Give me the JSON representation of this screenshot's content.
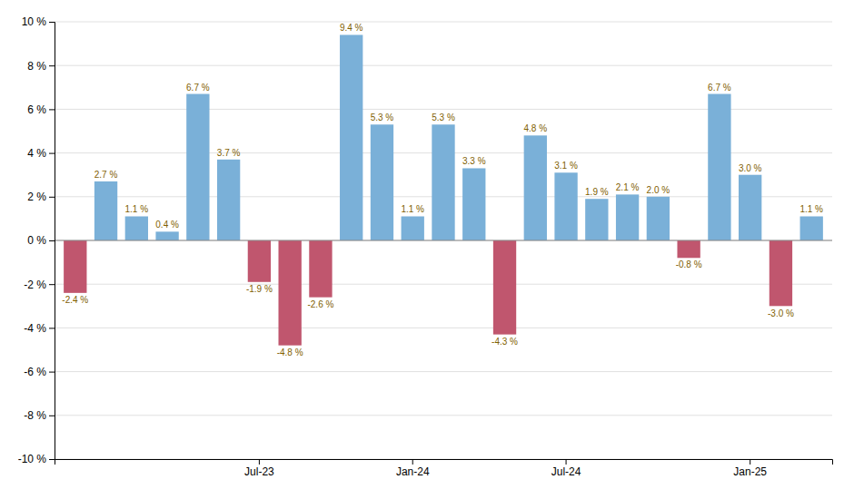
{
  "chart_data": {
    "type": "bar",
    "categories": [
      null,
      null,
      null,
      null,
      null,
      null,
      "Jul-23",
      null,
      null,
      null,
      null,
      "Jan-24",
      null,
      null,
      null,
      null,
      "Jul-24",
      null,
      null,
      null,
      null,
      null,
      "Jan-25",
      null,
      null
    ],
    "values": [
      -2.4,
      2.7,
      1.1,
      0.4,
      6.7,
      3.7,
      -1.9,
      -4.8,
      -2.6,
      9.4,
      5.3,
      1.1,
      5.3,
      3.3,
      -4.3,
      4.8,
      3.1,
      1.9,
      2.1,
      2.0,
      -0.8,
      6.7,
      3.0,
      -3.0,
      1.1
    ],
    "value_labels": [
      "-2.4 %",
      "2.7 %",
      "1.1 %",
      "0.4 %",
      "6.7 %",
      "3.7 %",
      "-1.9 %",
      "-4.8 %",
      "-2.6 %",
      "9.4 %",
      "5.3 %",
      "1.1 %",
      "5.3 %",
      "3.3 %",
      "-4.3 %",
      "4.8 %",
      "3.1 %",
      "1.9 %",
      "2.1 %",
      "2.0 %",
      "-0.8 %",
      "6.7 %",
      "3.0 %",
      "-3.0 %",
      "1.1 %"
    ],
    "colors": [
      "#c0566e",
      "#7ab0d8",
      "#7ab0d8",
      "#7ab0d8",
      "#7ab0d8",
      "#7ab0d8",
      "#c0566e",
      "#c0566e",
      "#c0566e",
      "#7ab0d8",
      "#7ab0d8",
      "#7ab0d8",
      "#7ab0d8",
      "#7ab0d8",
      "#c0566e",
      "#7ab0d8",
      "#7ab0d8",
      "#7ab0d8",
      "#7ab0d8",
      "#7ab0d8",
      "#c0566e",
      "#7ab0d8",
      "#7ab0d8",
      "#c0566e",
      "#7ab0d8"
    ],
    "ylim": [
      -10,
      10
    ],
    "yticks": [
      {
        "value": -10,
        "label": "-10 %"
      },
      {
        "value": -8,
        "label": "-8 %"
      },
      {
        "value": -6,
        "label": "-6 %"
      },
      {
        "value": -4,
        "label": "-4 %"
      },
      {
        "value": -2,
        "label": "-2 %"
      },
      {
        "value": 0,
        "label": "0 %"
      },
      {
        "value": 2,
        "label": "2 %"
      },
      {
        "value": 4,
        "label": "4 %"
      },
      {
        "value": 6,
        "label": "6 %"
      },
      {
        "value": 8,
        "label": "8 %"
      },
      {
        "value": 10,
        "label": "10 %"
      }
    ],
    "grid": true,
    "data_labels": true
  }
}
